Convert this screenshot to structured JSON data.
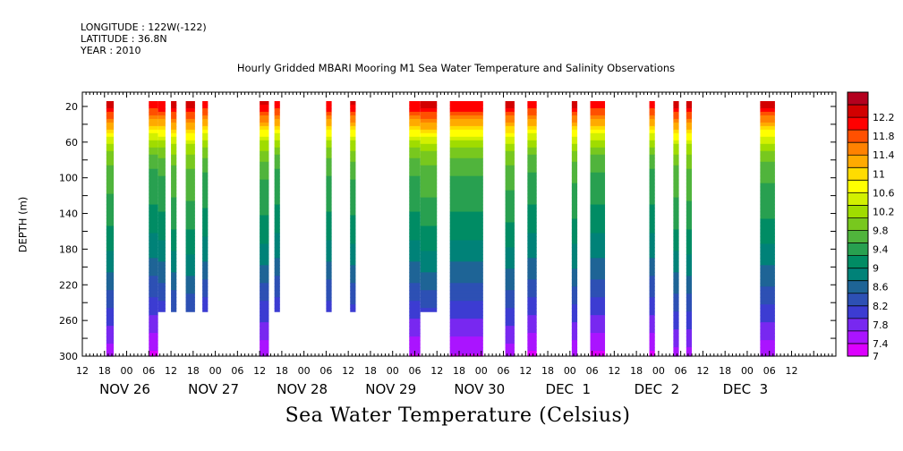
{
  "header": {
    "longitude": "LONGITUDE : 122W(-122)",
    "latitude": "LATITUDE : 36.8N",
    "year": "YEAR : 2010"
  },
  "title": "Hourly Gridded MBARI Mooring M1 Sea Water Temperature and Salinity Observations",
  "bottom_title": "Sea Water Temperature (Celsius)",
  "chart_data": {
    "type": "heatmap",
    "title": "Hourly Gridded MBARI Mooring M1 Sea Water Temperature and Salinity Observations",
    "xlabel": "",
    "ylabel": "DEPTH (m)",
    "colorbar_label": "Sea Water Temperature (Celsius)",
    "x_unit": "hours since NOV 26 00:00",
    "xlim": [
      12,
      216
    ],
    "ylim": [
      0,
      300
    ],
    "y_inverted": true,
    "y_ticks": [
      20,
      60,
      100,
      140,
      180,
      220,
      260,
      300
    ],
    "x_hour_ticks": [
      "12",
      "18",
      "00",
      "06",
      "12",
      "18",
      "00",
      "06",
      "12",
      "18",
      "00",
      "06",
      "12",
      "18",
      "00",
      "06",
      "12",
      "18",
      "00",
      "06",
      "12",
      "18",
      "00",
      "06",
      "12",
      "18",
      "00",
      "06",
      "12",
      "18",
      "00",
      "06",
      "12"
    ],
    "x_date_labels": [
      "NOV 26",
      "NOV 27",
      "NOV 28",
      "NOV 29",
      "NOV 30",
      "DEC  1",
      "DEC  2",
      "DEC  3"
    ],
    "colorbar_levels": [
      "12.2",
      "11.8",
      "11.4",
      "11",
      "10.6",
      "10.2",
      "9.8",
      "9.4",
      "9",
      "8.6",
      "8.2",
      "7.8",
      "7.4",
      "7"
    ],
    "colorbar_colors": [
      "#b4001e",
      "#d20000",
      "#ff0000",
      "#ff5000",
      "#ff8200",
      "#ffaa00",
      "#ffdc00",
      "#ffff00",
      "#d2f000",
      "#a0dc00",
      "#78c81e",
      "#50b43c",
      "#28a050",
      "#008c64",
      "#008278",
      "#1e6496",
      "#2d50b4",
      "#3c3cd2",
      "#7828f0",
      "#aa14ff",
      "#dc00ff"
    ],
    "temperature_range": [
      7,
      12.4
    ],
    "segments": [
      {
        "start": 18.5,
        "end": 20.5,
        "max_depth": 300
      },
      {
        "start": 30,
        "end": 32.5,
        "max_depth": 300
      },
      {
        "start": 32.5,
        "end": 34.5,
        "max_depth": 250
      },
      {
        "start": 36,
        "end": 37.5,
        "max_depth": 250
      },
      {
        "start": 40,
        "end": 42.5,
        "max_depth": 250
      },
      {
        "start": 44.5,
        "end": 46,
        "max_depth": 250
      },
      {
        "start": 60,
        "end": 62.5,
        "max_depth": 300
      },
      {
        "start": 64,
        "end": 65.5,
        "max_depth": 250
      },
      {
        "start": 78,
        "end": 79.5,
        "max_depth": 250
      },
      {
        "start": 84.5,
        "end": 86,
        "max_depth": 250
      },
      {
        "start": 100.5,
        "end": 103.5,
        "max_depth": 300
      },
      {
        "start": 103.5,
        "end": 108,
        "max_depth": 250
      },
      {
        "start": 111.5,
        "end": 120.5,
        "max_depth": 300
      },
      {
        "start": 126.5,
        "end": 129,
        "max_depth": 300
      },
      {
        "start": 132.5,
        "end": 135,
        "max_depth": 300
      },
      {
        "start": 144.5,
        "end": 146,
        "max_depth": 300
      },
      {
        "start": 149.5,
        "end": 153.5,
        "max_depth": 300
      },
      {
        "start": 165.5,
        "end": 167,
        "max_depth": 300
      },
      {
        "start": 172,
        "end": 173.5,
        "max_depth": 300
      },
      {
        "start": 175.5,
        "end": 177,
        "max_depth": 300
      },
      {
        "start": 195.5,
        "end": 199.5,
        "max_depth": 300
      }
    ],
    "profile_depths": [
      0,
      20,
      30,
      40,
      50,
      60,
      70,
      80,
      90,
      100,
      120,
      140,
      160,
      180,
      200,
      220,
      240,
      260,
      280,
      300
    ],
    "profile_temps": [
      12.0,
      11.9,
      11.4,
      11.0,
      10.5,
      10.1,
      9.8,
      9.6,
      9.45,
      9.35,
      9.25,
      9.1,
      8.95,
      8.75,
      8.55,
      8.3,
      8.05,
      7.8,
      7.55,
      7.3
    ],
    "grid": false,
    "legend_placement": "right colorbar"
  }
}
